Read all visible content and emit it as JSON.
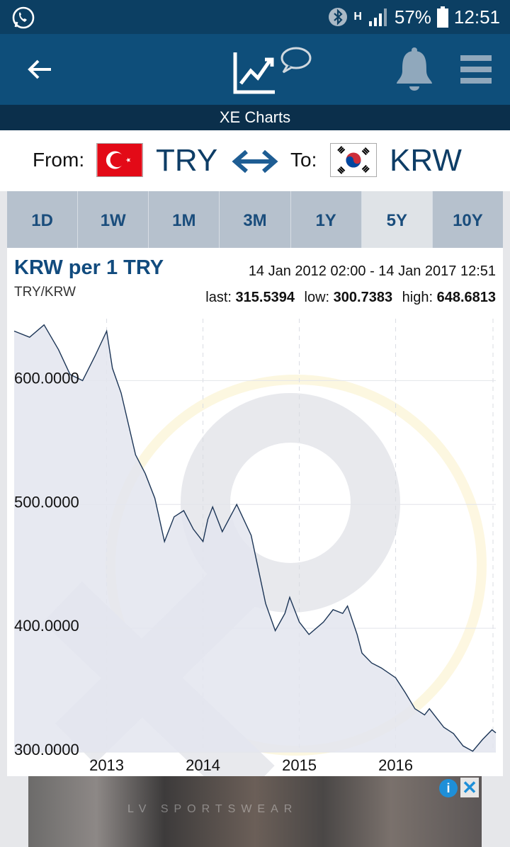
{
  "status": {
    "battery": "57%",
    "time": "12:51",
    "network": "H",
    "icons": [
      "whatsapp-icon",
      "bluetooth-icon",
      "signal-icon",
      "battery-icon"
    ]
  },
  "header": {
    "subtitle": "XE Charts",
    "icons": [
      "back-arrow-icon",
      "chart-logo-icon",
      "bell-icon",
      "menu-icon"
    ]
  },
  "pair": {
    "from_label": "From:",
    "from_code": "TRY",
    "to_label": "To:",
    "to_code": "KRW"
  },
  "tabs": [
    "1D",
    "1W",
    "1M",
    "3M",
    "1Y",
    "5Y",
    "10Y"
  ],
  "active_tab": "5Y",
  "chart_header": {
    "title": "KRW per 1 TRY",
    "pair": "TRY/KRW",
    "range": "14 Jan 2012 02:00 - 14 Jan 2017 12:51",
    "last_label": "last:",
    "last_value": "315.5394",
    "low_label": "low:",
    "low_value": "300.7383",
    "high_label": "high:",
    "high_value": "648.6813"
  },
  "chart_data": {
    "type": "area",
    "x": [
      2012.04,
      2012.2,
      2012.35,
      2012.5,
      2012.62,
      2012.75,
      2012.88,
      2013.0,
      2013.06,
      2013.15,
      2013.3,
      2013.4,
      2013.5,
      2013.6,
      2013.7,
      2013.8,
      2013.9,
      2014.0,
      2014.05,
      2014.1,
      2014.2,
      2014.35,
      2014.5,
      2014.65,
      2014.75,
      2014.85,
      2014.9,
      2015.0,
      2015.1,
      2015.25,
      2015.35,
      2015.45,
      2015.5,
      2015.6,
      2015.65,
      2015.75,
      2015.85,
      2016.0,
      2016.1,
      2016.2,
      2016.3,
      2016.35,
      2016.5,
      2016.6,
      2016.7,
      2016.8,
      2016.9,
      2017.0,
      2017.04
    ],
    "y": [
      640,
      635,
      645,
      625,
      605,
      600,
      620,
      640,
      610,
      590,
      540,
      525,
      505,
      470,
      490,
      495,
      480,
      470,
      488,
      498,
      478,
      500,
      475,
      420,
      398,
      412,
      425,
      405,
      395,
      405,
      415,
      412,
      418,
      395,
      380,
      372,
      368,
      360,
      348,
      335,
      330,
      335,
      320,
      315,
      305,
      300.7383,
      310,
      318,
      315.5394
    ],
    "y_ticks": [
      "600.0000",
      "500.0000",
      "400.0000",
      "300.0000"
    ],
    "y_tick_values": [
      600,
      500,
      400,
      300
    ],
    "x_ticks": [
      "2013",
      "2014",
      "2015",
      "2016"
    ],
    "x_tick_values": [
      2013,
      2014,
      2015,
      2016
    ],
    "ylim": [
      300,
      650
    ],
    "xlim": [
      2012.04,
      2017.04
    ],
    "grid": true,
    "colors": {
      "line": "#1c3556",
      "fill": "#e3e5ee"
    }
  },
  "ad": {
    "text": "LV SPORTSWEAR",
    "info": "i",
    "close": "✕"
  }
}
